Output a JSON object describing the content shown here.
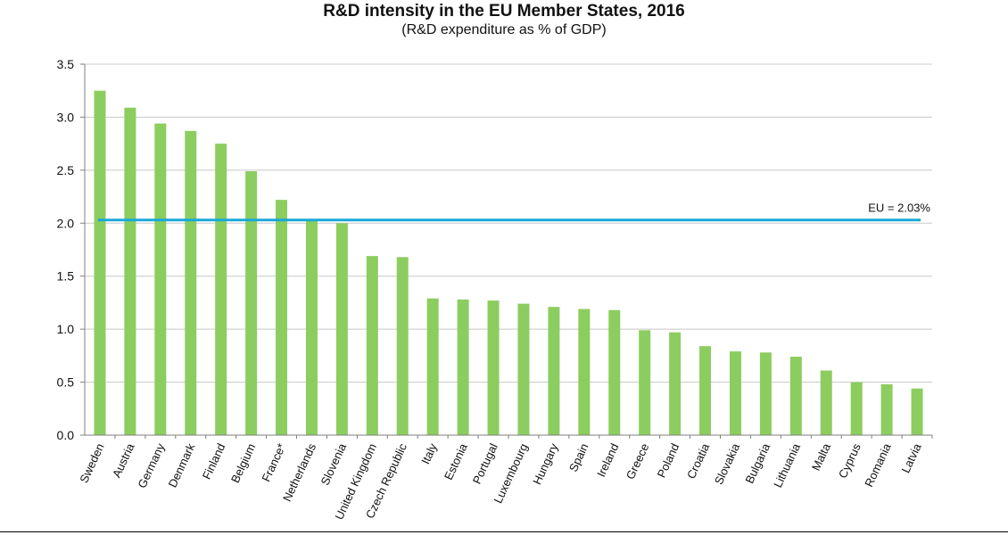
{
  "chart_data": {
    "type": "bar",
    "title": "R&D intensity in the EU Member States, 2016",
    "subtitle": "(R&D expenditure as % of GDP)",
    "xlabel": "",
    "ylabel": "",
    "ylim": [
      0,
      3.5
    ],
    "yticks": [
      "0.0",
      "0.5",
      "1.0",
      "1.5",
      "2.0",
      "2.5",
      "3.0",
      "3.5"
    ],
    "grid": true,
    "categories": [
      "Sweden",
      "Austria",
      "Germany",
      "Denmark",
      "Finland",
      "Belgium",
      "France*",
      "Netherlands",
      "Slovenia",
      "United Kingdom",
      "Czech Republic",
      "Italy",
      "Estonia",
      "Portugal",
      "Luxembourg",
      "Hungary",
      "Spain",
      "Ireland",
      "Greece",
      "Poland",
      "Croatia",
      "Slovakia",
      "Bulgaria",
      "Lithuania",
      "Malta",
      "Cyprus",
      "Romania",
      "Latvia"
    ],
    "values": [
      3.25,
      3.09,
      2.94,
      2.87,
      2.75,
      2.49,
      2.22,
      2.03,
      2.0,
      1.69,
      1.68,
      1.29,
      1.28,
      1.27,
      1.24,
      1.21,
      1.19,
      1.18,
      0.99,
      0.97,
      0.84,
      0.79,
      0.78,
      0.74,
      0.61,
      0.5,
      0.48,
      0.44
    ],
    "reference_line": {
      "value": 2.03,
      "label": "EU = 2.03%"
    },
    "colors": {
      "bar": "#8ccd5f",
      "reference": "#1aa8d8",
      "grid": "#c8c8c8",
      "axis": "#7f7f7f"
    }
  }
}
